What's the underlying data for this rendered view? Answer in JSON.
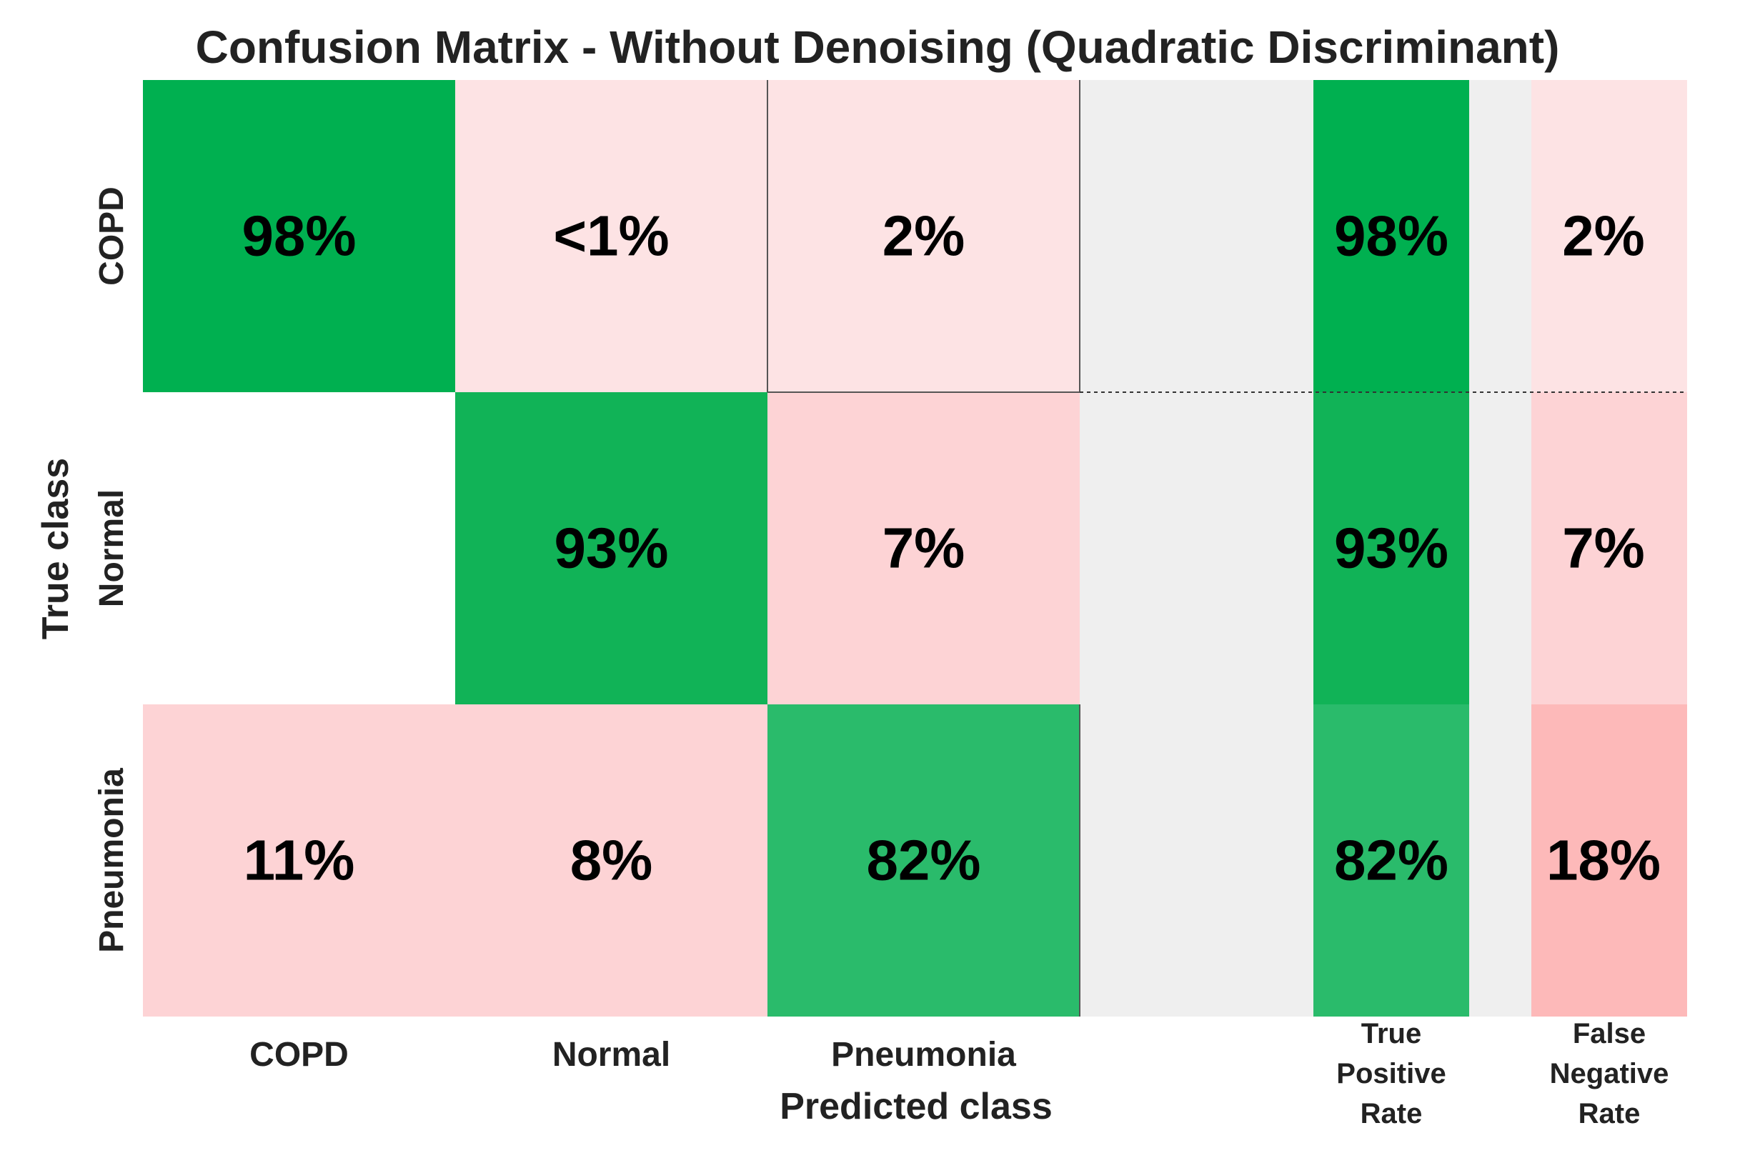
{
  "chart_data": {
    "type": "heatmap",
    "title": "Confusion Matrix - Without Denoising (Quadratic Discriminant)",
    "xlabel": "Predicted class",
    "ylabel": "True class",
    "classes": [
      "COPD",
      "Normal",
      "Pneumonia"
    ],
    "matrix_labels": [
      [
        "98%",
        "<1%",
        "2%"
      ],
      [
        "",
        "93%",
        "7%"
      ],
      [
        "11%",
        "8%",
        "82%"
      ]
    ],
    "matrix_values": [
      [
        98,
        0.5,
        2
      ],
      [
        0,
        93,
        7
      ],
      [
        11,
        8,
        82
      ]
    ],
    "summary_columns": [
      {
        "label": "True Positive Rate",
        "label_lines": [
          "True",
          "Positive",
          "Rate"
        ],
        "values": [
          98,
          93,
          82
        ],
        "labels": [
          "98%",
          "93%",
          "82%"
        ]
      },
      {
        "label": "False Negative Rate",
        "label_lines": [
          "False",
          "Negative",
          "Rate"
        ],
        "values": [
          2,
          7,
          18
        ],
        "labels": [
          "2%",
          "7%",
          "18%"
        ]
      }
    ],
    "colors": {
      "diag_high": "#00b050",
      "diag_mid": "#11b357",
      "diag_low": "#2abb6b",
      "off_light": "#fde3e4",
      "off_mid": "#fdd3d5",
      "off_strong": "#fdb9b9",
      "empty": "#ffffff",
      "gap": "#efefef"
    }
  }
}
